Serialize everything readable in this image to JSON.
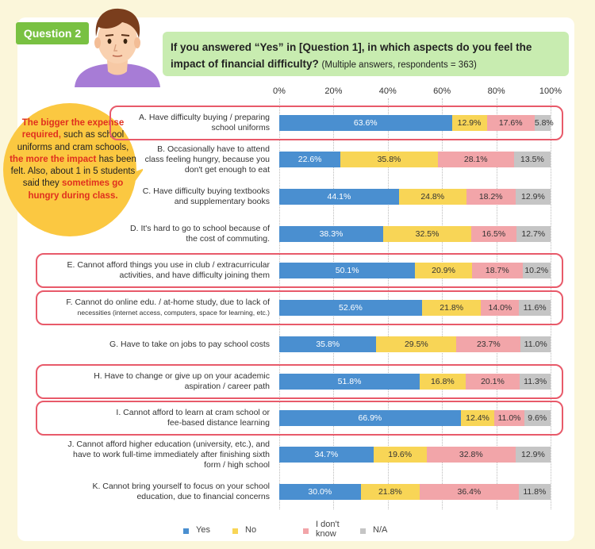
{
  "question_tag": "Question 2",
  "question_text": "If you answered “Yes” in [Question 1], in which aspects do you feel the impact of financial difficulty?",
  "question_sub": "(Multiple answers, respondents = 363)",
  "callout": {
    "p1": "The bigger the expense required,",
    "p2": " such as school uniforms and cram schools, ",
    "p3": "the more the impact",
    "p4": " has been felt. Also, about 1 in 5 students said they ",
    "p5": "sometimes go hungry during class."
  },
  "colors": {
    "Yes": "#4a8fd0",
    "No": "#f8d556",
    "I don't know": "#f2a5a9",
    "N/A": "#c5c5c5",
    "highlight": "#e85a6a"
  },
  "chart_data": {
    "type": "bar",
    "orientation": "horizontal-stacked",
    "xlim": [
      0,
      100
    ],
    "ticks": [
      "0%",
      "20%",
      "40%",
      "60%",
      "80%",
      "100%"
    ],
    "legend_position": "bottom",
    "series_names": [
      "Yes",
      "No",
      "I don't know",
      "N/A"
    ],
    "categories": [
      {
        "line1": "A. Have difficulty buying / preparing",
        "line2": "school uniforms",
        "line3": "",
        "small": false,
        "highlighted": true,
        "values": [
          63.6,
          12.9,
          17.6,
          5.8
        ],
        "labels": [
          "63.6%",
          "12.9%",
          "17.6%",
          "5.8%"
        ]
      },
      {
        "line1": "B. Occasionally have to attend",
        "line2": "class feeling hungry, because you",
        "line3": "don't get enough to eat",
        "small": false,
        "highlighted": false,
        "values": [
          22.6,
          35.8,
          28.1,
          13.5
        ],
        "labels": [
          "22.6%",
          "35.8%",
          "28.1%",
          "13.5%"
        ]
      },
      {
        "line1": "C. Have difficulty buying textbooks",
        "line2": "and supplementary books",
        "line3": "",
        "small": false,
        "highlighted": false,
        "values": [
          44.1,
          24.8,
          18.2,
          12.9
        ],
        "labels": [
          "44.1%",
          "24.8%",
          "18.2%",
          "12.9%"
        ]
      },
      {
        "line1": "D.  It's hard to go to school because of",
        "line2": "the cost of commuting.",
        "line3": "",
        "small": false,
        "highlighted": false,
        "values": [
          38.3,
          32.5,
          16.5,
          12.7
        ],
        "labels": [
          "38.3%",
          "32.5%",
          "16.5%",
          "12.7%"
        ]
      },
      {
        "line1": "E. Cannot afford things you use in club / extracurricular",
        "line2": "activities, and have difficulty joining them",
        "line3": "",
        "small": false,
        "highlighted": true,
        "values": [
          50.1,
          20.9,
          18.7,
          10.2
        ],
        "labels": [
          "50.1%",
          "20.9%",
          "18.7%",
          "10.2%"
        ]
      },
      {
        "line1": "F. Cannot do online edu. / at-home study, due to lack of",
        "line2": "necessities (internet access, computers, space for learning, etc.)",
        "line3": "",
        "small": true,
        "highlighted": true,
        "values": [
          52.6,
          21.8,
          14.0,
          11.6
        ],
        "labels": [
          "52.6%",
          "21.8%",
          "14.0%",
          "11.6%"
        ]
      },
      {
        "line1": "G. Have to take on jobs to pay school costs",
        "line2": "",
        "line3": "",
        "small": false,
        "highlighted": false,
        "values": [
          35.8,
          29.5,
          23.7,
          11.0
        ],
        "labels": [
          "35.8%",
          "29.5%",
          "23.7%",
          "11.0%"
        ]
      },
      {
        "line1": "H. Have to change or give up on your academic",
        "line2": "aspiration / career path",
        "line3": "",
        "small": false,
        "highlighted": true,
        "values": [
          51.8,
          16.8,
          20.1,
          11.3
        ],
        "labels": [
          "51.8%",
          "16.8%",
          "20.1%",
          "11.3%"
        ]
      },
      {
        "line1": "I. Cannot afford to learn at cram school or",
        "line2": "fee-based distance learning",
        "line3": "",
        "small": false,
        "highlighted": true,
        "values": [
          66.9,
          12.4,
          11.0,
          9.6
        ],
        "labels": [
          "66.9%",
          "12.4%",
          "11.0%",
          "9.6%"
        ]
      },
      {
        "line1": "J. Cannot afford higher education (university, etc.), and",
        "line2": "have to work full-time immediately after finishing sixth",
        "line3": "form / high school",
        "small": false,
        "highlighted": false,
        "values": [
          34.7,
          19.6,
          32.8,
          12.9
        ],
        "labels": [
          "34.7%",
          "19.6%",
          "32.8%",
          "12.9%"
        ]
      },
      {
        "line1": "K. Cannot bring yourself to focus on your school",
        "line2": "education, due to financial concerns",
        "line3": "",
        "small": false,
        "highlighted": false,
        "values": [
          30.0,
          21.8,
          36.4,
          11.8
        ],
        "labels": [
          "30.0%",
          "21.8%",
          "36.4%",
          "11.8%"
        ]
      }
    ],
    "legend": [
      {
        "line1": "Yes",
        "line2": ""
      },
      {
        "line1": "No",
        "line2": ""
      },
      {
        "line1": "I don't",
        "line2": "know"
      },
      {
        "line1": "N/A",
        "line2": ""
      }
    ]
  }
}
